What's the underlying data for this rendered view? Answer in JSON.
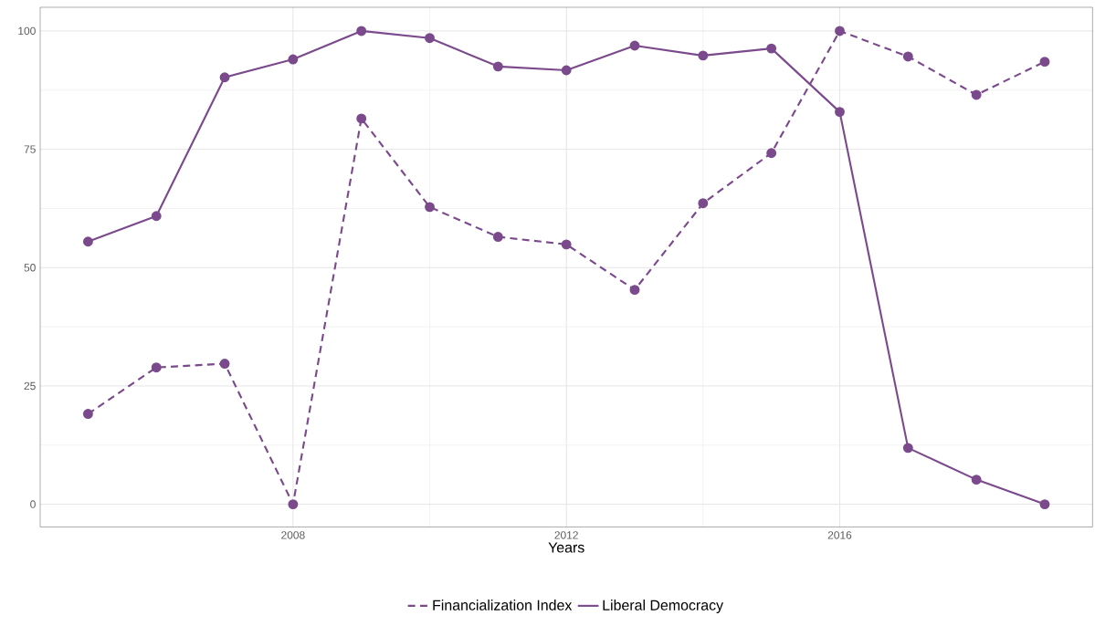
{
  "chart_data": {
    "type": "line",
    "xlabel": "Years",
    "x": [
      2005,
      2006,
      2007,
      2008,
      2009,
      2010,
      2011,
      2012,
      2013,
      2014,
      2015,
      2016,
      2017,
      2018,
      2019
    ],
    "series": [
      {
        "name": "Financialization Index",
        "color": "#7b4a8c",
        "line_style": "dashed",
        "values": [
          19.1,
          28.9,
          29.7,
          0,
          81.5,
          62.8,
          56.5,
          54.9,
          45.3,
          63.6,
          74.2,
          100,
          94.6,
          86.5,
          93.5
        ]
      },
      {
        "name": "Liberal Democracy",
        "color": "#7b4a8c",
        "line_style": "solid",
        "values": [
          55.5,
          60.9,
          90.2,
          94.0,
          100,
          98.5,
          92.5,
          91.7,
          96.9,
          94.8,
          96.3,
          82.9,
          11.9,
          5.2,
          0
        ]
      }
    ],
    "xlim": [
      2004.3,
      2019.7
    ],
    "ylim": [
      -4.8,
      105
    ],
    "xticks": [
      2008,
      2012,
      2016
    ],
    "yticks": [
      0,
      25,
      50,
      75,
      100
    ],
    "grid": true,
    "legend": "bottom",
    "marker": "circle"
  }
}
